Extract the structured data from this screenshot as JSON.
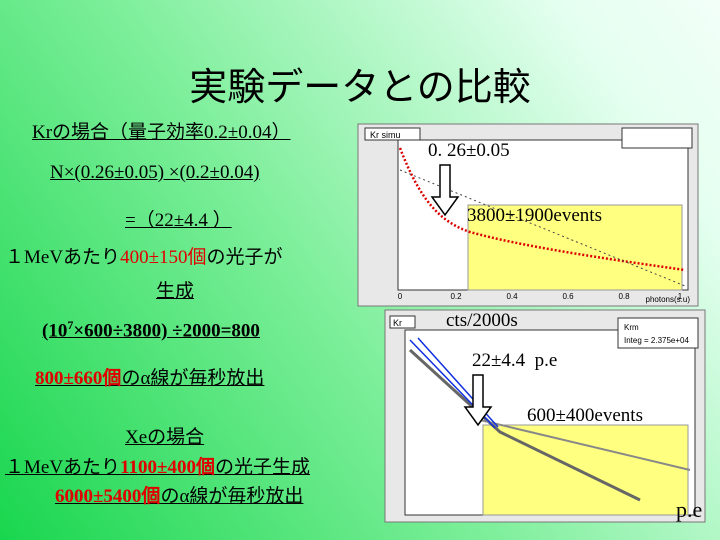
{
  "title": "実験データとの比較",
  "kr": {
    "line1": "Krの場合（量子効率0.2±0.04）",
    "line2": "N×(0.26±0.05) ×(0.2±0.04)",
    "line3": "=（22±4.4 ）",
    "line4": [
      "１MeVあたり",
      "400±150個",
      "の光子が"
    ],
    "line5": "生成",
    "line6": [
      "(10",
      "7",
      "×600÷3800) ÷2000=800"
    ],
    "line7": [
      "800±660個",
      "のα線が毎秒放出"
    ]
  },
  "xe": {
    "line1": "Xeの場合",
    "line2": [
      "１MeVあたり",
      "1100±400個",
      "の光子生成"
    ],
    "line3": [
      "6000±5400個",
      "のα線が毎秒放出"
    ]
  },
  "annotations": [
    "0. 26±0.05",
    "3800±1900events",
    "cts/2000s",
    "22±4.4  p.e",
    "600±400events",
    "p.e"
  ],
  "plot1": {
    "title": "Kr simu",
    "xlabel": "photons(s.u)",
    "xticks": [
      "0",
      "0.2",
      "0.4",
      "0.6",
      "0.8",
      "1"
    ]
  },
  "plot2": {
    "title": "Kr",
    "stats_title": "Krm",
    "stats": "Integ = 2.375e+04"
  }
}
